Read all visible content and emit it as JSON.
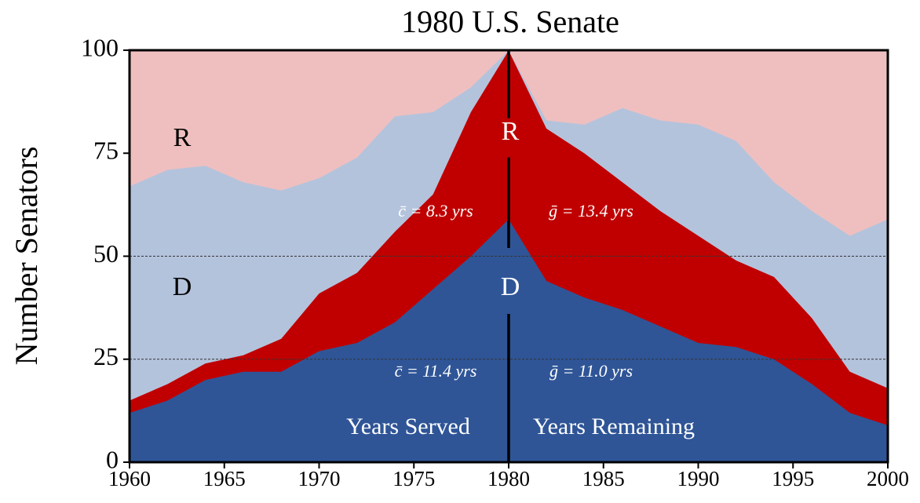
{
  "chart_data": {
    "type": "stacked_area",
    "title": "1980 U.S. Senate",
    "y_label": "Number Senators",
    "x": [
      1960,
      1962,
      1964,
      1966,
      1968,
      1970,
      1972,
      1974,
      1976,
      1978,
      1980,
      1982,
      1984,
      1986,
      1988,
      1990,
      1992,
      1994,
      1996,
      1998,
      2000
    ],
    "series": [
      {
        "color": "#2f5597",
        "values": [
          12,
          15,
          20,
          22,
          22,
          27,
          29,
          34,
          42,
          50,
          59,
          44,
          40,
          37,
          33,
          29,
          28,
          25,
          19,
          12,
          9
        ]
      },
      {
        "color": "#c00000",
        "values": [
          3,
          4,
          4,
          4,
          8,
          14,
          17,
          22,
          23,
          35,
          41,
          37,
          35,
          31,
          28,
          26,
          21,
          20,
          16,
          10,
          9
        ]
      },
      {
        "color": "#b4c3dc",
        "values": [
          52,
          52,
          48,
          42,
          36,
          28,
          28,
          28,
          20,
          6,
          0,
          2,
          7,
          18,
          22,
          27,
          29,
          23,
          26,
          33,
          41
        ]
      },
      {
        "color": "#efbfbf",
        "values": [
          33,
          29,
          28,
          32,
          34,
          31,
          26,
          16,
          15,
          9,
          0,
          17,
          18,
          14,
          17,
          18,
          22,
          32,
          39,
          45,
          41
        ]
      }
    ],
    "xlim": [
      1960,
      2000
    ],
    "ylim": [
      0,
      100
    ],
    "xticks": [
      1960,
      1965,
      1970,
      1975,
      1980,
      1985,
      1990,
      1995,
      2000
    ],
    "yticks": [
      0,
      25,
      50,
      75,
      100
    ],
    "hlines": [
      25,
      50
    ],
    "vline": 1980,
    "annotations": [
      "R",
      "D",
      "R",
      "D",
      "c̄ = 8.3 yrs",
      "ḡ = 13.4 yrs",
      "c̄ = 11.4 yrs",
      "ḡ = 11.0 yrs",
      "Years Served",
      "Years Remaining"
    ]
  }
}
